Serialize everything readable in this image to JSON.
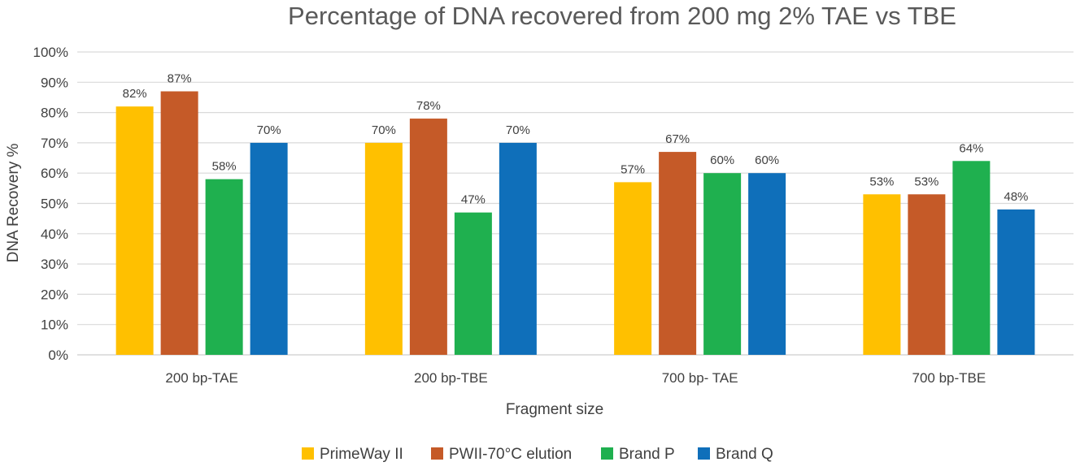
{
  "chart_data": {
    "type": "bar",
    "title": "Percentage of DNA recovered from 200 mg 2% TAE vs TBE",
    "xlabel": "Fragment size",
    "ylabel": "DNA Recovery %",
    "categories": [
      "200 bp-TAE",
      "200 bp-TBE",
      "700 bp- TAE",
      "700 bp-TBE"
    ],
    "ylim": [
      0,
      100
    ],
    "yticks": [
      "0%",
      "10%",
      "20%",
      "30%",
      "40%",
      "50%",
      "60%",
      "70%",
      "80%",
      "90%",
      "100%"
    ],
    "grid": true,
    "legend_position": "bottom",
    "series": [
      {
        "name": "PrimeWay II",
        "color": "#FFC000",
        "values": [
          82,
          70,
          57,
          53
        ],
        "labels": [
          "82%",
          "70%",
          "57%",
          "53%"
        ]
      },
      {
        "name": "PWII-70°C elution",
        "color": "#C55A28",
        "values": [
          87,
          78,
          67,
          53
        ],
        "labels": [
          "87%",
          "78%",
          "67%",
          "53%"
        ]
      },
      {
        "name": "Brand P",
        "color": "#1FB04F",
        "values": [
          58,
          47,
          60,
          64
        ],
        "labels": [
          "58%",
          "47%",
          "60%",
          "64%"
        ]
      },
      {
        "name": "Brand Q",
        "color": "#0F6FBA",
        "values": [
          70,
          70,
          60,
          48
        ],
        "labels": [
          "70%",
          "70%",
          "60%",
          "48%"
        ]
      }
    ]
  }
}
